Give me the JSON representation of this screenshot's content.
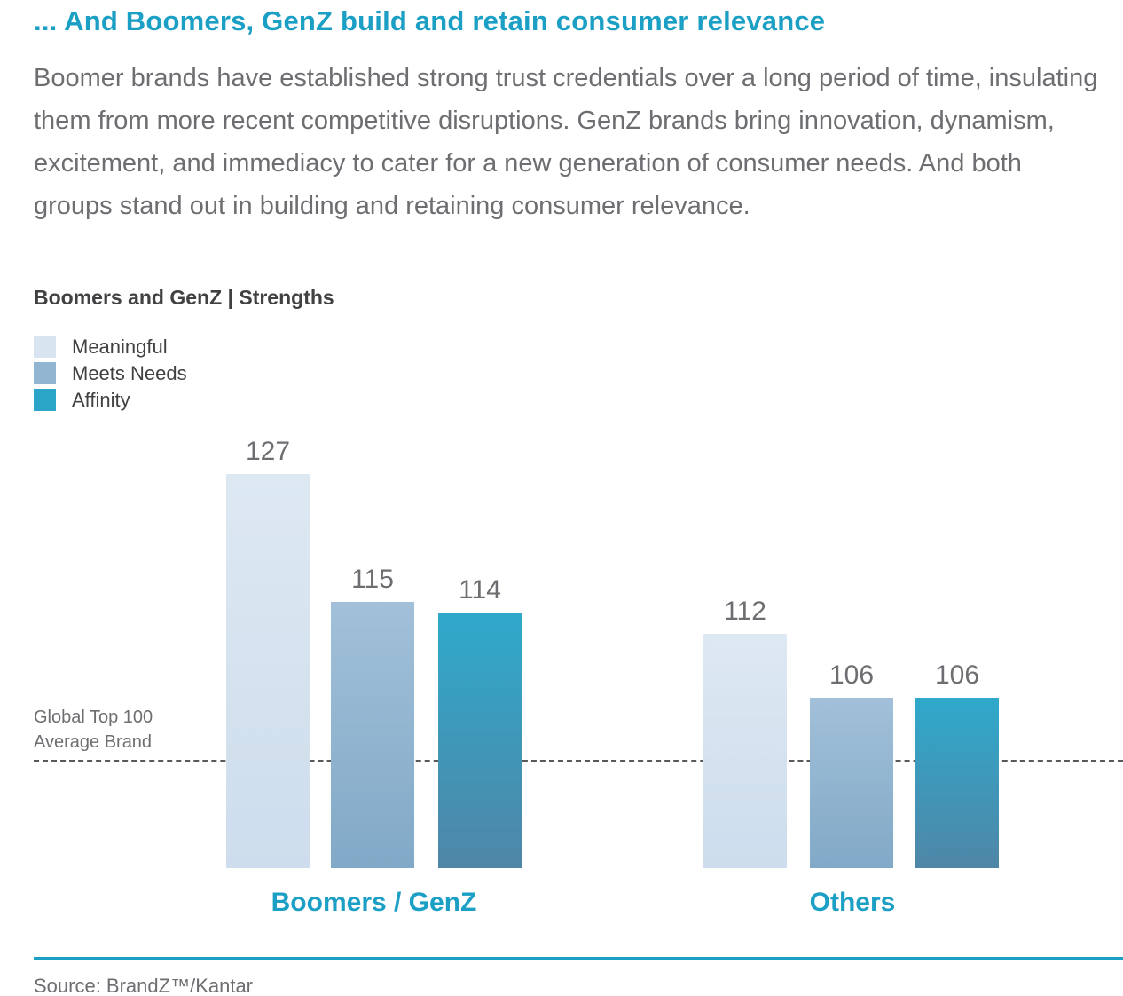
{
  "title": "... And Boomers, GenZ build and retain consumer relevance",
  "paragraph": "Boomer brands have established strong trust credentials over a long period of time, insulating them from more recent competitive disruptions. GenZ brands bring innovation, dynamism, excitement, and immediacy to cater for a new generation of consumer needs. And both groups stand out in building and retaining consumer relevance.",
  "subtitle": "Boomers and GenZ | Strengths",
  "legend": [
    {
      "label": "Meaningful",
      "color": "#d8e4ef"
    },
    {
      "label": "Meets Needs",
      "color": "#92b6d2"
    },
    {
      "label": "Affinity",
      "color": "#2aa5c8"
    }
  ],
  "chart_data": {
    "type": "bar",
    "title": "Boomers and GenZ | Strengths",
    "categories": [
      "Boomers / GenZ",
      "Others"
    ],
    "series": [
      {
        "name": "Meaningful",
        "values": [
          127,
          112
        ],
        "color_top": "#dde8f2",
        "color_bottom": "#cddded"
      },
      {
        "name": "Meets Needs",
        "values": [
          115,
          106
        ],
        "color_top": "#a2c0d9",
        "color_bottom": "#81a9c7"
      },
      {
        "name": "Affinity",
        "values": [
          114,
          106
        ],
        "color_top": "#2fa9cb",
        "color_bottom": "#4f86a7"
      }
    ],
    "reference_line": {
      "label": "Global Top 100 Average Brand",
      "value": 100
    },
    "ylim": [
      90,
      133
    ],
    "xlabel": "",
    "ylabel": "",
    "grid": false,
    "legend_position": "top-left"
  },
  "baseline_label_line1": "Global Top 100",
  "baseline_label_line2": "Average Brand",
  "source": "Source: BrandZ™/Kantar",
  "colors": {
    "accent_teal": "#1b9fc4",
    "text_gray": "#6d6e71",
    "text_dark": "#414042",
    "dashed_line": "#58595b"
  }
}
